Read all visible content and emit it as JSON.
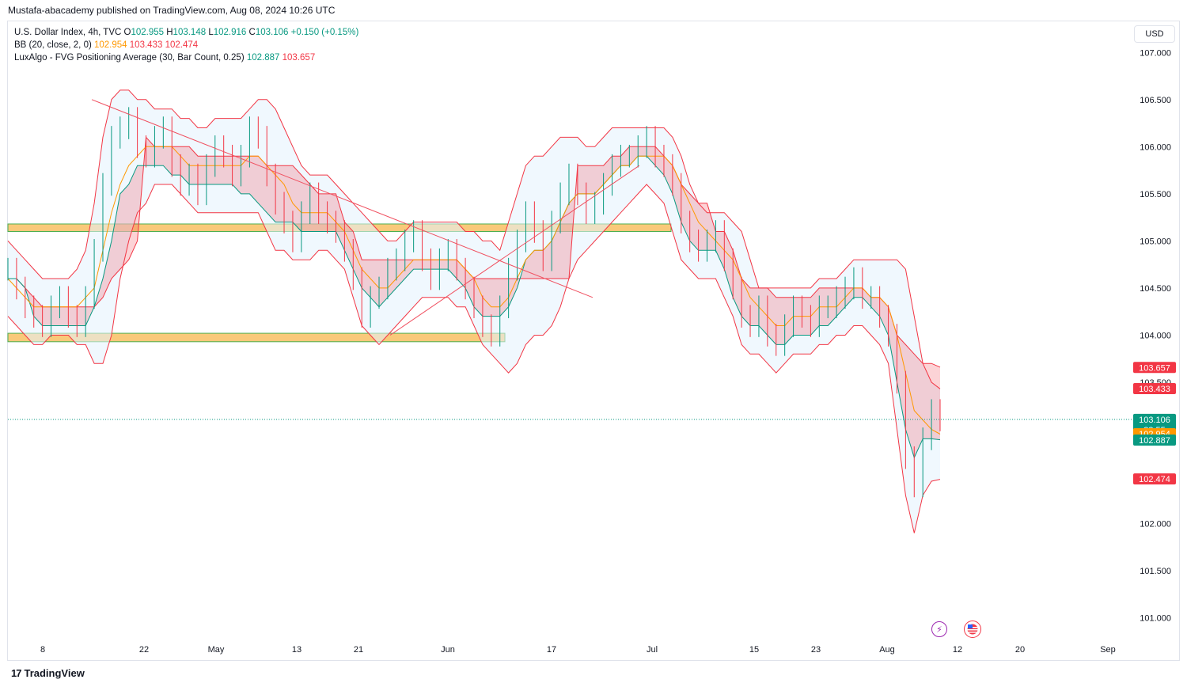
{
  "header": {
    "published": "Mustafa-abacademy published on TradingView.com, Aug 08, 2024 10:26 UTC"
  },
  "legend": {
    "symbol_line_prefix": "U.S. Dollar Index, 4h, TVC",
    "open_label": "O",
    "open": "102.955",
    "high_label": "H",
    "high": "103.148",
    "low_label": "L",
    "low": "102.916",
    "close_label": "C",
    "close": "103.106",
    "change": "+0.150 (+0.15%)",
    "bb_label": "BB (20, close, 2, 0)",
    "bb_basis": "102.954",
    "bb_upper": "103.433",
    "bb_lower": "102.474",
    "fvg_label": "LuxAlgo - FVG Positioning Average (30, Bar Count, 0.25)",
    "fvg_bull": "102.887",
    "fvg_bear": "103.657"
  },
  "currency": "USD",
  "footer": {
    "brand": "TradingView",
    "logo_glyph": "17"
  },
  "colors": {
    "bull": "#089981",
    "bear": "#f23645",
    "basis": "#ff9800",
    "zone_fill": "#f9c97a",
    "zone_border": "#4caf50",
    "trendline": "#f05060",
    "axis_text": "#131722"
  },
  "icons": {
    "lightning": "lightning-icon",
    "flag": "us-flag-icon"
  },
  "chart_data": {
    "type": "line",
    "symbol": "U.S. Dollar Index",
    "timeframe": "4h",
    "y_ticks": [
      "107.000",
      "106.500",
      "106.000",
      "105.500",
      "105.000",
      "104.500",
      "104.000",
      "103.500",
      "102.000",
      "101.500",
      "101.000"
    ],
    "x_ticks": [
      "8",
      "22",
      "May",
      "13",
      "21",
      "Jun",
      "17",
      "Jul",
      "15",
      "23",
      "Aug",
      "12",
      "20",
      "Sep"
    ],
    "ylim": [
      100.77,
      107.33
    ],
    "price_labels": [
      {
        "name": "fvg_bear",
        "value": 103.657,
        "text": "103.657",
        "color": "#f23645"
      },
      {
        "name": "bb_upper",
        "value": 103.433,
        "text": "103.433",
        "color": "#f23645"
      },
      {
        "name": "last",
        "value": 103.106,
        "text": "103.106",
        "sub": "33:55",
        "color": "#089981"
      },
      {
        "name": "bb_basis",
        "value": 102.954,
        "text": "102.954",
        "color": "#ff9800"
      },
      {
        "name": "fvg_bull",
        "value": 102.887,
        "text": "102.887",
        "color": "#089981"
      },
      {
        "name": "bb_lower",
        "value": 102.474,
        "text": "102.474",
        "color": "#f23645"
      }
    ],
    "series": [
      {
        "role": "close",
        "values": [
          104.7,
          104.5,
          104.3,
          104.2,
          104.1,
          104.3,
          104.4,
          104.2,
          104.1,
          104.4,
          104.9,
          105.6,
          106.1,
          106.2,
          106.3,
          106.0,
          105.9,
          106.1,
          106.2,
          105.8,
          105.6,
          105.7,
          105.5,
          105.8,
          106.0,
          105.9,
          105.7,
          105.9,
          106.2,
          106.1,
          105.7,
          105.4,
          105.2,
          105.0,
          105.3,
          105.5,
          105.3,
          105.2,
          105.1,
          104.9,
          104.6,
          104.2,
          104.4,
          104.5,
          104.7,
          104.8,
          105.0,
          105.1,
          104.8,
          104.6,
          104.8,
          104.9,
          104.7,
          104.5,
          104.3,
          104.1,
          104.0,
          104.3,
          104.7,
          105.0,
          105.3,
          105.1,
          104.8,
          105.2,
          105.5,
          105.7,
          105.5,
          105.3,
          105.4,
          105.6,
          105.8,
          105.9,
          105.9,
          106.0,
          106.1,
          105.9,
          105.8,
          105.6,
          105.2,
          105.0,
          104.9,
          105.0,
          105.1,
          104.8,
          104.5,
          104.2,
          104.1,
          104.3,
          104.0,
          103.9,
          104.1,
          104.3,
          104.2,
          104.1,
          104.3,
          104.3,
          104.4,
          104.5,
          104.6,
          104.4,
          104.4,
          104.2,
          104.0,
          103.5,
          102.7,
          102.4,
          102.9,
          103.2,
          103.1
        ]
      },
      {
        "role": "bb_basis",
        "values": [
          104.6,
          104.5,
          104.4,
          104.3,
          104.3,
          104.3,
          104.3,
          104.3,
          104.3,
          104.4,
          104.5,
          104.9,
          105.3,
          105.6,
          105.8,
          105.9,
          106.0,
          106.0,
          106.0,
          106.0,
          105.9,
          105.8,
          105.8,
          105.8,
          105.8,
          105.8,
          105.8,
          105.8,
          105.9,
          105.9,
          105.8,
          105.7,
          105.6,
          105.4,
          105.3,
          105.3,
          105.3,
          105.3,
          105.2,
          105.1,
          104.9,
          104.7,
          104.6,
          104.5,
          104.5,
          104.6,
          104.7,
          104.8,
          104.8,
          104.8,
          104.8,
          104.8,
          104.8,
          104.7,
          104.6,
          104.4,
          104.3,
          104.3,
          104.4,
          104.6,
          104.8,
          104.9,
          104.9,
          105.0,
          105.2,
          105.4,
          105.5,
          105.5,
          105.5,
          105.6,
          105.7,
          105.8,
          105.8,
          105.9,
          105.9,
          105.9,
          105.9,
          105.8,
          105.6,
          105.4,
          105.2,
          105.1,
          105.0,
          104.9,
          104.8,
          104.6,
          104.4,
          104.3,
          104.2,
          104.1,
          104.1,
          104.2,
          104.2,
          104.2,
          104.3,
          104.3,
          104.3,
          104.4,
          104.5,
          104.5,
          104.4,
          104.4,
          104.3,
          104.0,
          103.6,
          103.2,
          103.1,
          103.0,
          102.95
        ]
      },
      {
        "role": "bb_upper",
        "values": [
          105.0,
          104.9,
          104.8,
          104.7,
          104.6,
          104.6,
          104.6,
          104.6,
          104.7,
          104.9,
          105.4,
          106.1,
          106.5,
          106.6,
          106.6,
          106.5,
          106.5,
          106.4,
          106.4,
          106.4,
          106.3,
          106.3,
          106.2,
          106.2,
          106.3,
          106.3,
          106.3,
          106.3,
          106.4,
          106.5,
          106.5,
          106.4,
          106.2,
          106.0,
          105.8,
          105.7,
          105.7,
          105.7,
          105.6,
          105.5,
          105.4,
          105.3,
          105.2,
          105.1,
          105.0,
          105.0,
          105.1,
          105.2,
          105.2,
          105.2,
          105.2,
          105.2,
          105.2,
          105.1,
          105.1,
          105.0,
          105.0,
          104.9,
          105.2,
          105.5,
          105.8,
          105.9,
          105.9,
          106.0,
          106.1,
          106.1,
          106.1,
          106.0,
          106.0,
          106.1,
          106.2,
          106.2,
          106.2,
          106.2,
          106.2,
          106.2,
          106.2,
          106.1,
          105.9,
          105.6,
          105.4,
          105.3,
          105.3,
          105.3,
          105.2,
          105.1,
          104.8,
          104.5,
          104.5,
          104.5,
          104.5,
          104.5,
          104.5,
          104.5,
          104.6,
          104.6,
          104.6,
          104.7,
          104.8,
          104.8,
          104.8,
          104.8,
          104.8,
          104.8,
          104.7,
          104.2,
          103.7,
          103.5,
          103.43
        ]
      },
      {
        "role": "bb_lower",
        "values": [
          104.2,
          104.1,
          104.0,
          103.9,
          103.9,
          104.0,
          104.0,
          104.0,
          103.9,
          103.9,
          103.7,
          103.7,
          104.0,
          104.6,
          105.0,
          105.3,
          105.4,
          105.6,
          105.6,
          105.6,
          105.5,
          105.4,
          105.3,
          105.3,
          105.3,
          105.3,
          105.3,
          105.3,
          105.3,
          105.3,
          105.1,
          104.9,
          104.9,
          104.8,
          104.8,
          104.8,
          104.9,
          104.9,
          104.8,
          104.7,
          104.4,
          104.1,
          104.0,
          103.9,
          104.0,
          104.1,
          104.2,
          104.3,
          104.4,
          104.4,
          104.4,
          104.4,
          104.3,
          104.3,
          104.1,
          103.9,
          103.8,
          103.7,
          103.6,
          103.7,
          103.9,
          104.0,
          104.0,
          104.1,
          104.3,
          104.6,
          104.8,
          104.9,
          105.0,
          105.1,
          105.2,
          105.3,
          105.4,
          105.5,
          105.6,
          105.5,
          105.4,
          105.1,
          104.8,
          104.7,
          104.6,
          104.6,
          104.6,
          104.4,
          104.2,
          103.9,
          103.8,
          103.8,
          103.7,
          103.6,
          103.7,
          103.8,
          103.8,
          103.8,
          103.9,
          103.9,
          104.0,
          104.0,
          104.1,
          104.1,
          104.0,
          103.9,
          103.7,
          103.0,
          102.3,
          101.9,
          102.3,
          102.45,
          102.47
        ]
      },
      {
        "role": "fvg_bear",
        "values": [
          104.6,
          104.6,
          104.5,
          104.4,
          104.3,
          104.3,
          104.3,
          104.3,
          104.3,
          104.3,
          104.3,
          104.4,
          104.6,
          104.7,
          104.8,
          105.0,
          106.1,
          106.0,
          106.0,
          106.0,
          106.0,
          106.0,
          105.9,
          105.9,
          105.9,
          105.9,
          105.9,
          105.9,
          105.9,
          105.9,
          105.8,
          105.8,
          105.8,
          105.8,
          105.7,
          105.6,
          105.5,
          105.5,
          105.5,
          105.2,
          105.1,
          104.8,
          104.8,
          104.8,
          104.8,
          104.8,
          104.8,
          104.8,
          104.8,
          104.8,
          104.8,
          104.8,
          104.8,
          104.7,
          104.6,
          104.6,
          104.6,
          104.6,
          104.6,
          104.6,
          104.6,
          104.6,
          104.6,
          104.6,
          104.6,
          104.6,
          105.8,
          105.8,
          105.8,
          105.8,
          105.9,
          105.9,
          106.0,
          106.0,
          106.0,
          106.0,
          105.9,
          105.8,
          105.6,
          105.5,
          105.4,
          105.4,
          105.1,
          105.1,
          104.9,
          104.6,
          104.5,
          104.5,
          104.5,
          104.4,
          104.4,
          104.4,
          104.4,
          104.4,
          104.5,
          104.5,
          104.5,
          104.5,
          104.5,
          104.5,
          104.4,
          104.4,
          104.3,
          104.0,
          103.9,
          103.8,
          103.7,
          103.7,
          103.66
        ]
      },
      {
        "role": "fvg_bull",
        "values": [
          104.6,
          104.6,
          104.5,
          104.2,
          104.1,
          104.1,
          104.1,
          104.1,
          104.1,
          104.1,
          104.3,
          104.6,
          105.0,
          105.5,
          105.6,
          105.8,
          105.8,
          105.8,
          105.8,
          105.7,
          105.7,
          105.6,
          105.6,
          105.6,
          105.6,
          105.6,
          105.6,
          105.5,
          105.5,
          105.4,
          105.3,
          105.2,
          105.2,
          105.2,
          105.1,
          105.1,
          105.1,
          105.1,
          105.1,
          104.9,
          104.7,
          104.5,
          104.4,
          104.3,
          104.4,
          104.5,
          104.6,
          104.7,
          104.7,
          104.7,
          104.7,
          104.7,
          104.6,
          104.5,
          104.3,
          104.2,
          104.2,
          104.2,
          104.3,
          104.5,
          104.8,
          104.9,
          104.9,
          105.0,
          105.2,
          105.4,
          105.5,
          105.5,
          105.5,
          105.6,
          105.7,
          105.8,
          105.8,
          105.9,
          105.9,
          105.8,
          105.7,
          105.5,
          105.2,
          105.0,
          104.9,
          104.9,
          104.9,
          104.7,
          104.4,
          104.2,
          104.1,
          104.1,
          104.0,
          103.9,
          103.9,
          104.0,
          104.0,
          104.0,
          104.1,
          104.1,
          104.2,
          104.3,
          104.4,
          104.4,
          104.3,
          104.2,
          104.0,
          103.5,
          103.0,
          102.7,
          102.9,
          102.9,
          102.89
        ]
      }
    ],
    "zones": [
      {
        "low": 105.1,
        "high": 105.18
      },
      {
        "low": 103.93,
        "high": 104.02
      }
    ],
    "trendlines": [
      {
        "from": [
          0.09,
          106.5
        ],
        "to": [
          0.5,
          104.4
        ]
      },
      {
        "from": [
          0.41,
          104.0
        ],
        "to": [
          0.55,
          105.8
        ]
      }
    ]
  }
}
